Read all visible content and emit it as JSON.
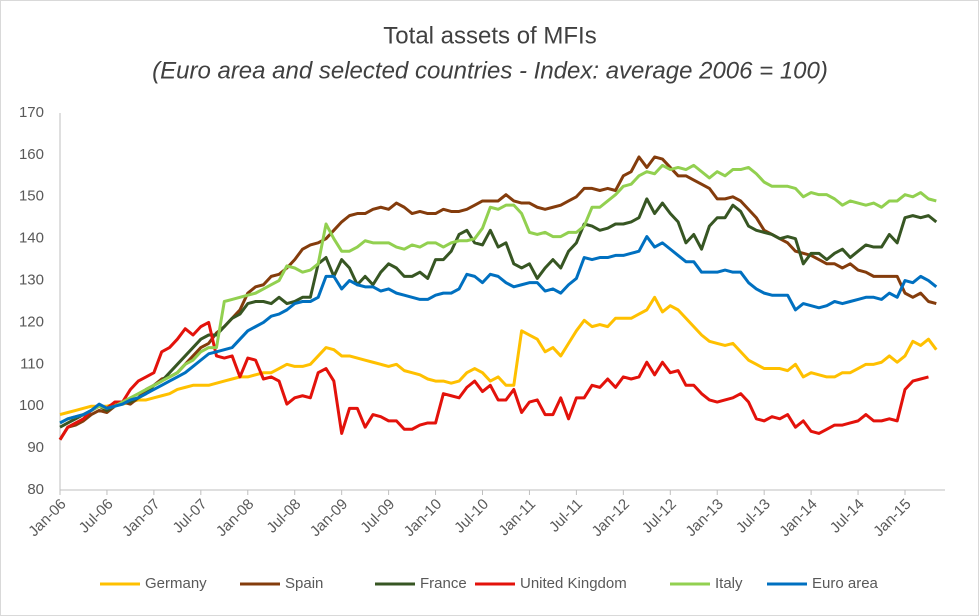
{
  "chart_data": {
    "type": "line",
    "title": "Total assets of MFIs",
    "subtitle": "(Euro area and selected countries - Index: average 2006 = 100)",
    "categories": [
      "Jan-06",
      null,
      null,
      null,
      null,
      null,
      "Jul-06",
      null,
      null,
      null,
      null,
      null,
      "Jan-07",
      null,
      null,
      null,
      null,
      null,
      "Jul-07",
      null,
      null,
      null,
      null,
      null,
      "Jan-08",
      null,
      null,
      null,
      null,
      null,
      "Jul-08",
      null,
      null,
      null,
      null,
      null,
      "Jan-09",
      null,
      null,
      null,
      null,
      null,
      "Jul-09",
      null,
      null,
      null,
      null,
      null,
      "Jan-10",
      null,
      null,
      null,
      null,
      null,
      "Jul-10",
      null,
      null,
      null,
      null,
      null,
      "Jan-11",
      null,
      null,
      null,
      null,
      null,
      "Jul-11",
      null,
      null,
      null,
      null,
      null,
      "Jan-12",
      null,
      null,
      null,
      null,
      null,
      "Jul-12",
      null,
      null,
      null,
      null,
      null,
      "Jan-13",
      null,
      null,
      null,
      null,
      null,
      "Jul-13",
      null,
      null,
      null,
      null,
      null,
      "Jan-14",
      null,
      null,
      null,
      null,
      null,
      "Jul-14",
      null,
      null,
      null,
      null,
      null,
      "Jan-15",
      null,
      null,
      null,
      null
    ],
    "ylim": [
      80,
      170
    ],
    "yticks": [
      80,
      90,
      100,
      110,
      120,
      130,
      140,
      150,
      160,
      170
    ],
    "grid": false,
    "legend": "bottom",
    "series": [
      {
        "name": "Germany",
        "color": "#ffc000",
        "values": [
          98,
          98.5,
          99,
          99.5,
          100,
          100,
          100,
          100.5,
          100.5,
          101,
          101.5,
          101.5,
          102,
          102.5,
          103,
          104,
          104.5,
          105,
          105,
          105,
          105.5,
          106,
          106.5,
          107,
          107,
          107.5,
          108,
          108,
          109,
          110,
          109.5,
          109.5,
          110,
          112,
          114,
          113.5,
          112,
          112,
          111.5,
          111,
          110.5,
          110,
          109.5,
          110,
          108.5,
          108,
          107.5,
          106.5,
          106,
          106,
          105.5,
          106,
          108,
          109,
          108,
          106,
          107,
          105,
          105,
          118,
          117,
          116,
          113,
          114,
          112,
          115,
          118,
          120.5,
          119,
          119.5,
          119,
          121,
          121,
          121,
          122,
          123,
          126,
          122.5,
          124,
          123,
          121,
          119,
          117,
          115.5,
          115,
          114.5,
          115,
          113,
          111,
          110,
          109,
          109,
          109,
          108.5,
          110,
          107,
          108,
          107.5,
          107,
          107,
          108,
          108,
          109,
          110,
          110,
          110.5,
          112,
          110.5,
          112,
          115.5,
          114.5,
          116,
          113.5
        ]
      },
      {
        "name": "Spain",
        "color": "#843c0c",
        "values": [
          92,
          95,
          95.5,
          96.5,
          98,
          99,
          98.5,
          100,
          101,
          100.5,
          102,
          104,
          105,
          106.5,
          107,
          108,
          110,
          112,
          114,
          115,
          117.5,
          119,
          121,
          123,
          127,
          128.5,
          129,
          131,
          131.5,
          133,
          135,
          137.5,
          138.5,
          139,
          140,
          142,
          144,
          145.5,
          146,
          146,
          147,
          147.5,
          147,
          148.5,
          147.5,
          146,
          146.5,
          146,
          146,
          147,
          146.5,
          146.5,
          147,
          148,
          149,
          149,
          149,
          150.5,
          149,
          148.5,
          148.5,
          147.5,
          147,
          147.5,
          148,
          149,
          150,
          152,
          152,
          151.5,
          152,
          151.5,
          155,
          156,
          159.5,
          157,
          159.5,
          159,
          157,
          155,
          155,
          154,
          153,
          152,
          149.5,
          149.5,
          150,
          149,
          147,
          145,
          142,
          141,
          140,
          139,
          137,
          136.5,
          136,
          135,
          134,
          134,
          133,
          134,
          132.5,
          132,
          131,
          131,
          131,
          131,
          127,
          126,
          127,
          125,
          124.5
        ]
      },
      {
        "name": "France",
        "color": "#375623",
        "values": [
          95,
          96,
          97,
          98,
          99,
          100,
          99,
          100,
          101,
          101,
          102,
          103,
          105,
          106,
          108,
          110,
          112,
          114,
          116,
          117,
          117,
          119,
          121,
          122,
          124.5,
          125,
          125,
          124.5,
          126,
          124.5,
          125,
          126,
          126,
          134,
          135.5,
          131,
          135,
          133,
          129,
          131,
          129,
          132,
          134,
          133,
          131,
          131,
          132,
          130.5,
          135,
          135,
          137,
          141,
          142,
          139,
          138.5,
          142,
          138,
          139,
          134,
          133,
          134,
          130.5,
          133,
          135,
          133,
          137,
          139,
          143.5,
          143,
          142,
          142.5,
          143.5,
          143.5,
          144,
          145,
          149.5,
          146,
          148.5,
          146,
          144,
          139,
          141,
          137.5,
          143,
          145,
          145,
          148,
          146.5,
          143,
          142,
          141.5,
          141,
          140,
          140.5,
          140,
          134,
          136.5,
          136.5,
          135,
          136.5,
          137.5,
          135.5,
          137,
          138.5,
          138,
          138,
          141,
          139,
          145,
          145.5,
          145,
          145.5,
          144
        ]
      },
      {
        "name": "United Kingdom",
        "color": "#e3120b",
        "values": [
          92,
          95,
          96,
          97,
          99,
          100,
          99.5,
          101,
          101,
          104,
          106,
          107,
          108,
          113,
          114,
          116,
          118.5,
          117,
          119,
          120,
          112,
          111.5,
          112,
          107,
          111.5,
          111,
          106.5,
          107,
          106,
          100.5,
          102,
          102.5,
          102,
          108,
          109,
          106,
          93.5,
          99.5,
          99.5,
          95,
          98,
          97.5,
          96.5,
          96.5,
          94.5,
          94.5,
          95.5,
          96,
          96,
          103,
          102.5,
          102,
          104.5,
          106,
          103.5,
          105,
          101.5,
          101.5,
          104,
          98.5,
          101,
          101.5,
          98,
          98,
          102,
          97,
          102,
          102,
          105,
          104.5,
          106.5,
          104.5,
          107,
          106.5,
          107,
          110.5,
          107.5,
          110.5,
          108,
          108.5,
          105,
          105,
          103,
          101.5,
          101,
          101.5,
          102,
          103,
          101,
          97,
          96.5,
          97.5,
          97,
          98,
          95,
          96.5,
          94,
          93.5,
          94.5,
          95.5,
          95.5,
          96,
          96.5,
          98,
          96.5,
          96.5,
          97,
          96.5,
          104,
          106,
          106.5,
          107,
          null
        ]
      },
      {
        "name": "Italy",
        "color": "#92d050",
        "values": [
          96,
          97,
          97.5,
          98,
          99,
          100,
          99.5,
          100,
          101,
          102,
          103,
          104,
          105,
          106,
          107,
          108,
          110,
          111,
          113,
          114,
          114,
          125,
          125.5,
          126,
          126.5,
          127,
          128,
          129,
          130,
          133.5,
          133,
          132,
          132.5,
          134,
          143.5,
          140,
          137,
          137,
          138,
          139.5,
          139,
          139,
          139,
          138,
          137.5,
          138.5,
          138,
          139,
          139,
          138,
          139,
          139.5,
          139.5,
          140,
          142.5,
          147.5,
          147,
          148,
          148,
          146,
          141.5,
          141,
          141.5,
          140.5,
          140.5,
          141.5,
          141.5,
          143,
          147.5,
          147.5,
          149,
          150.5,
          152.5,
          153,
          155,
          156,
          155.5,
          157.5,
          156.5,
          157,
          156.5,
          157.5,
          156,
          154.5,
          156,
          155,
          156.5,
          156.5,
          157,
          155.5,
          153.5,
          152.5,
          152.5,
          152.5,
          152,
          150,
          151,
          150.5,
          150.5,
          149.5,
          148,
          149,
          148.5,
          148,
          148.5,
          147.5,
          149,
          149,
          150.5,
          150,
          151,
          149.5,
          149
        ]
      },
      {
        "name": "Euro area",
        "color": "#0070c0",
        "values": [
          96,
          97,
          97.5,
          98,
          99,
          100.5,
          99.5,
          100,
          100.5,
          101.5,
          102,
          103,
          104,
          105,
          106,
          107,
          108,
          109.5,
          111,
          112.5,
          113,
          113.5,
          114,
          116,
          118,
          119,
          120,
          121.5,
          122,
          123,
          124.5,
          125,
          125,
          126,
          131,
          131,
          128,
          130,
          129,
          128.5,
          128.5,
          127.5,
          128,
          127,
          126.5,
          126,
          125.5,
          125.5,
          126.5,
          127,
          127,
          128,
          131.5,
          131,
          129.5,
          131.5,
          131,
          129.5,
          128.5,
          129,
          129.5,
          129.5,
          127.5,
          128,
          127,
          129,
          130.5,
          135.5,
          135,
          135.5,
          135.5,
          136,
          136,
          136.5,
          137,
          140.5,
          138,
          139,
          137.5,
          136,
          134.5,
          134.5,
          132,
          132,
          132,
          132.5,
          132,
          132,
          129.5,
          128,
          127,
          126.5,
          126.5,
          126.5,
          123,
          124.5,
          124,
          123.5,
          124,
          125,
          124.5,
          125,
          125.5,
          126,
          126,
          125.5,
          127,
          126,
          130,
          129.5,
          131,
          130,
          128.5
        ]
      }
    ]
  }
}
